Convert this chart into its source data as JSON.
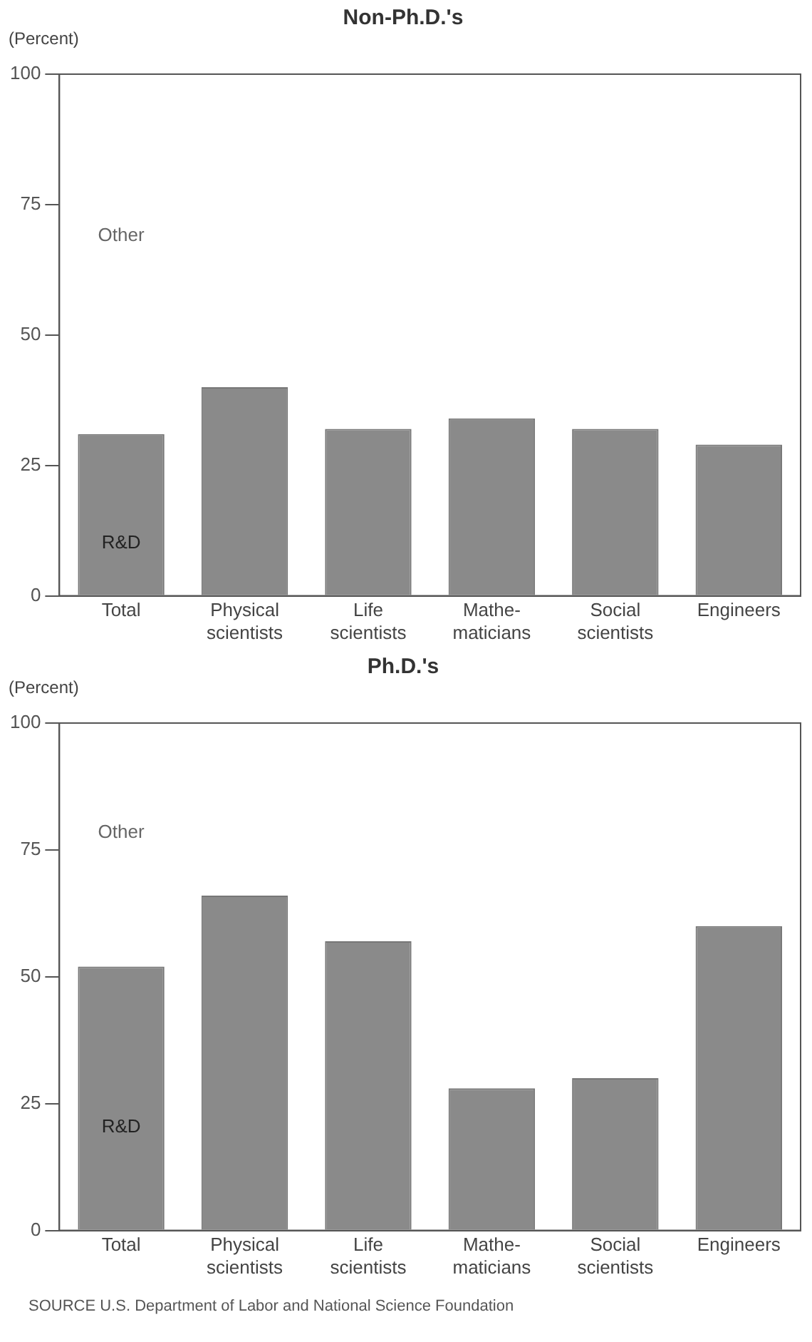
{
  "chart_data": [
    {
      "type": "bar",
      "title": "Non-Ph.D.'s",
      "ylabel": "(Percent)",
      "categories": [
        "Total",
        "Physical\nscientists",
        "Life\nscientists",
        "Mathe-\nmaticians",
        "Social\nscientists",
        "Engineers"
      ],
      "values": [
        31,
        40,
        32,
        34,
        32,
        29
      ],
      "color": "#8a8a8a",
      "ylim": [
        0,
        100
      ],
      "yticks": [
        0,
        25,
        50,
        75,
        100
      ],
      "grid": false,
      "annotations": [
        "Other",
        "R&D"
      ]
    },
    {
      "type": "bar",
      "title": "Ph.D.'s",
      "ylabel": "(Percent)",
      "categories": [
        "Total",
        "Physical\nscientists",
        "Life\nscientists",
        "Mathe-\nmaticians",
        "Social\nscientists",
        "Engineers"
      ],
      "values": [
        52,
        66,
        57,
        28,
        30,
        60
      ],
      "color": "#8a8a8a",
      "ylim": [
        0,
        100
      ],
      "yticks": [
        0,
        25,
        50,
        75,
        100
      ],
      "grid": false,
      "annotations": [
        "Other",
        "R&D",
        "SOURCE  U.S. Department of Labor and National Science Foundation"
      ]
    }
  ]
}
